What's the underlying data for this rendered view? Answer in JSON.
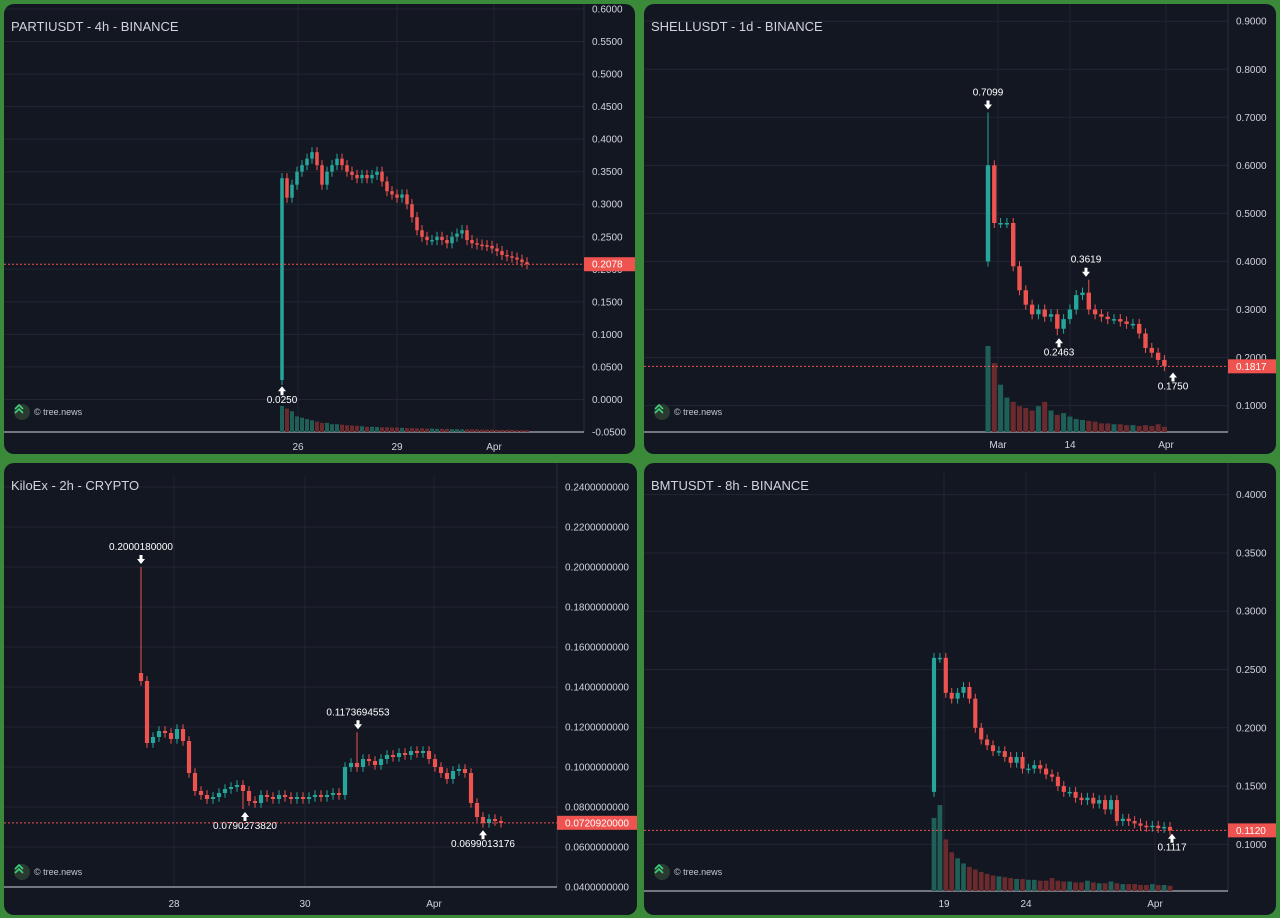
{
  "watermark": "© tree.news",
  "colors": {
    "up": "#26a69a",
    "down": "#ef5350",
    "grid": "#232632",
    "text": "#d1d4dc",
    "line": "#ef5350"
  },
  "charts": [
    {
      "title": "PARTIUSDT - 4h - BINANCE",
      "chart_data": {
        "type": "candlestick",
        "yticks": [
          "0.6000",
          "0.5500",
          "0.5000",
          "0.4500",
          "0.4000",
          "0.3500",
          "0.3000",
          "0.2500",
          "0.2000",
          "0.1500",
          "0.1000",
          "0.0500",
          "0.0000",
          "-0.0500"
        ],
        "ylim": [
          -0.05,
          0.6
        ],
        "xticks": [
          "26",
          "29",
          "Apr"
        ],
        "last_price": "0.2078",
        "annotations": [
          {
            "label": "0.0250",
            "value": 0.025,
            "dir": "up"
          }
        ],
        "closes": [
          0.34,
          0.31,
          0.33,
          0.35,
          0.36,
          0.37,
          0.38,
          0.36,
          0.33,
          0.35,
          0.36,
          0.37,
          0.36,
          0.35,
          0.345,
          0.34,
          0.345,
          0.34,
          0.345,
          0.35,
          0.335,
          0.32,
          0.315,
          0.31,
          0.315,
          0.3,
          0.28,
          0.26,
          0.25,
          0.245,
          0.245,
          0.25,
          0.245,
          0.24,
          0.25,
          0.255,
          0.26,
          0.245,
          0.24,
          0.238,
          0.237,
          0.236,
          0.232,
          0.228,
          0.222,
          0.22,
          0.218,
          0.215,
          0.211,
          0.208
        ],
        "open0": 0.03,
        "volumes": [
          1,
          0.9,
          0.8,
          0.6,
          0.55,
          0.5,
          0.45,
          0.4,
          0.35,
          0.35,
          0.3,
          0.3,
          0.28,
          0.26,
          0.25,
          0.24,
          0.22,
          0.2,
          0.2,
          0.19,
          0.18,
          0.18,
          0.17,
          0.17,
          0.16,
          0.15,
          0.15,
          0.14,
          0.14,
          0.13,
          0.13,
          0.12,
          0.12,
          0.12,
          0.11,
          0.11,
          0.1,
          0.1,
          0.1,
          0.1,
          0.09,
          0.09,
          0.09,
          0.08,
          0.08,
          0.08,
          0.08,
          0.07,
          0.07,
          0.07
        ]
      }
    },
    {
      "title": "SHELLUSDT - 1d - BINANCE",
      "chart_data": {
        "type": "candlestick",
        "yticks": [
          "0.9000",
          "0.8000",
          "0.7000",
          "0.6000",
          "0.5000",
          "0.4000",
          "0.3000",
          "0.2000",
          "0.1000"
        ],
        "ylim": [
          0.045,
          0.915
        ],
        "xticks": [
          "Mar",
          "14",
          "Apr"
        ],
        "last_price": "0.1817",
        "annotations": [
          {
            "label": "0.7099",
            "value": 0.7099,
            "dir": "down"
          },
          {
            "label": "0.3619",
            "value": 0.3619,
            "dir": "down"
          },
          {
            "label": "0.2463",
            "value": 0.2463,
            "dir": "up"
          },
          {
            "label": "0.1750",
            "value": 0.175,
            "dir": "up"
          }
        ],
        "closes": [
          0.6,
          0.48,
          0.48,
          0.48,
          0.39,
          0.34,
          0.31,
          0.29,
          0.3,
          0.285,
          0.29,
          0.26,
          0.28,
          0.3,
          0.33,
          0.335,
          0.3,
          0.29,
          0.285,
          0.28,
          0.28,
          0.275,
          0.27,
          0.27,
          0.25,
          0.22,
          0.21,
          0.195,
          0.182
        ],
        "open0": 0.4,
        "volumes": [
          1,
          0.8,
          0.55,
          0.4,
          0.35,
          0.3,
          0.28,
          0.25,
          0.3,
          0.35,
          0.25,
          0.2,
          0.22,
          0.18,
          0.15,
          0.14,
          0.13,
          0.12,
          0.1,
          0.1,
          0.09,
          0.09,
          0.08,
          0.08,
          0.07,
          0.08,
          0.07,
          0.09,
          0.06
        ]
      }
    },
    {
      "title": "KiloEx - 2h - CRYPTO",
      "chart_data": {
        "type": "candlestick",
        "yticks": [
          "0.2400000000",
          "0.2200000000",
          "0.2000000000",
          "0.1800000000",
          "0.1600000000",
          "0.1400000000",
          "0.1200000000",
          "0.1000000000",
          "0.0800000000",
          "0.0600000000",
          "0.0400000000"
        ],
        "ylim": [
          0.04,
          0.24
        ],
        "xticks": [
          "28",
          "30",
          "Apr"
        ],
        "last_price": "0.0720920000",
        "annotations": [
          {
            "label": "0.2000180000",
            "value": 0.200018,
            "dir": "down"
          },
          {
            "label": "0.1173694553",
            "value": 0.1173694553,
            "dir": "down"
          },
          {
            "label": "0.0790273820",
            "value": 0.079027382,
            "dir": "up"
          },
          {
            "label": "0.0699013176",
            "value": 0.0699013176,
            "dir": "up"
          }
        ],
        "closes": [
          0.143,
          0.112,
          0.115,
          0.118,
          0.117,
          0.114,
          0.119,
          0.113,
          0.097,
          0.088,
          0.086,
          0.084,
          0.085,
          0.087,
          0.089,
          0.09,
          0.091,
          0.088,
          0.083,
          0.082,
          0.086,
          0.085,
          0.084,
          0.086,
          0.085,
          0.084,
          0.085,
          0.084,
          0.085,
          0.086,
          0.085,
          0.086,
          0.087,
          0.086,
          0.1,
          0.102,
          0.1,
          0.104,
          0.103,
          0.101,
          0.104,
          0.106,
          0.105,
          0.107,
          0.106,
          0.108,
          0.107,
          0.108,
          0.104,
          0.1,
          0.097,
          0.094,
          0.098,
          0.099,
          0.097,
          0.082,
          0.075,
          0.072,
          0.074,
          0.073,
          0.0721
        ],
        "open0": 0.147,
        "volumes": []
      }
    },
    {
      "title": "BMTUSDT - 8h - BINANCE",
      "chart_data": {
        "type": "candlestick",
        "yticks": [
          "0.4000",
          "0.3500",
          "0.3000",
          "0.2500",
          "0.2000",
          "0.1500",
          "0.1000"
        ],
        "ylim": [
          0.06,
          0.41
        ],
        "xticks": [
          "19",
          "24",
          "Apr"
        ],
        "last_price": "0.1120",
        "annotations": [
          {
            "label": "0.1117",
            "value": 0.1117,
            "dir": "up"
          }
        ],
        "closes": [
          0.26,
          0.26,
          0.23,
          0.225,
          0.23,
          0.235,
          0.225,
          0.2,
          0.19,
          0.185,
          0.18,
          0.18,
          0.175,
          0.17,
          0.175,
          0.165,
          0.165,
          0.168,
          0.165,
          0.16,
          0.158,
          0.15,
          0.145,
          0.145,
          0.14,
          0.138,
          0.14,
          0.135,
          0.138,
          0.13,
          0.138,
          0.12,
          0.122,
          0.12,
          0.118,
          0.116,
          0.115,
          0.116,
          0.114,
          0.115,
          0.112
        ],
        "open0": 0.145,
        "volumes": [
          0.85,
          1,
          0.6,
          0.45,
          0.38,
          0.32,
          0.28,
          0.25,
          0.22,
          0.2,
          0.18,
          0.17,
          0.16,
          0.15,
          0.14,
          0.14,
          0.13,
          0.13,
          0.12,
          0.12,
          0.15,
          0.12,
          0.11,
          0.11,
          0.1,
          0.1,
          0.12,
          0.1,
          0.09,
          0.09,
          0.11,
          0.09,
          0.08,
          0.08,
          0.08,
          0.07,
          0.07,
          0.08,
          0.07,
          0.07,
          0.06
        ]
      }
    }
  ]
}
